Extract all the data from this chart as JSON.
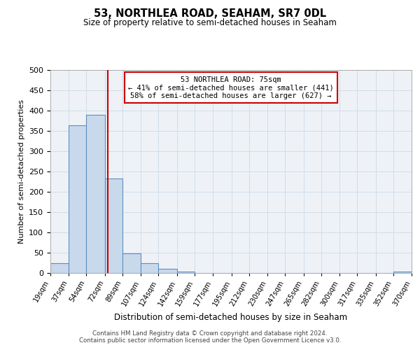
{
  "title": "53, NORTHLEA ROAD, SEAHAM, SR7 0DL",
  "subtitle": "Size of property relative to semi-detached houses in Seaham",
  "xlabel": "Distribution of semi-detached houses by size in Seaham",
  "ylabel": "Number of semi-detached properties",
  "bin_edges": [
    19,
    37,
    54,
    72,
    89,
    107,
    124,
    142,
    159,
    177,
    195,
    212,
    230,
    247,
    265,
    282,
    300,
    317,
    335,
    352,
    370
  ],
  "bin_counts": [
    25,
    363,
    390,
    233,
    49,
    24,
    10,
    3,
    0,
    0,
    0,
    0,
    0,
    0,
    0,
    0,
    0,
    0,
    0,
    3
  ],
  "bar_facecolor": "#c9d9ec",
  "bar_edgecolor": "#5a8fc0",
  "property_size": 75,
  "marker_line_color": "#cc0000",
  "annotation_title": "53 NORTHLEA ROAD: 75sqm",
  "annotation_line1": "← 41% of semi-detached houses are smaller (441)",
  "annotation_line2": "58% of semi-detached houses are larger (627) →",
  "annotation_box_edgecolor": "#cc0000",
  "grid_color": "#d0dde8",
  "background_color": "#eef2f7",
  "tick_labels": [
    "19sqm",
    "37sqm",
    "54sqm",
    "72sqm",
    "89sqm",
    "107sqm",
    "124sqm",
    "142sqm",
    "159sqm",
    "177sqm",
    "195sqm",
    "212sqm",
    "230sqm",
    "247sqm",
    "265sqm",
    "282sqm",
    "300sqm",
    "317sqm",
    "335sqm",
    "352sqm",
    "370sqm"
  ],
  "ylim": [
    0,
    500
  ],
  "yticks": [
    0,
    50,
    100,
    150,
    200,
    250,
    300,
    350,
    400,
    450,
    500
  ],
  "footer1": "Contains HM Land Registry data © Crown copyright and database right 2024.",
  "footer2": "Contains public sector information licensed under the Open Government Licence v3.0."
}
